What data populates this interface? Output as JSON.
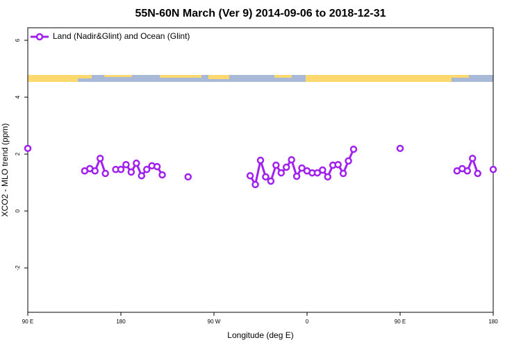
{
  "chart_data": {
    "type": "line",
    "title": "55N-60N March (Ver 9)   2014-09-06 to 2018-12-31",
    "xlabel": "Longitude (deg E)",
    "ylabel": "XCO2 - MLO trend (ppm)",
    "x": [
      90,
      100,
      145,
      150,
      155,
      160,
      165,
      170,
      175,
      180,
      185,
      190,
      195,
      200,
      205,
      210,
      215,
      220,
      230,
      245,
      260,
      305,
      310,
      315,
      320,
      325,
      330,
      335,
      340,
      345,
      350,
      355,
      360,
      365,
      370,
      375,
      380,
      385,
      390,
      395,
      400,
      405,
      430,
      450,
      480,
      505,
      510,
      515,
      520,
      525,
      535,
      540
    ],
    "series": [
      {
        "name": "Land (Nadir&Glint) and Ocean (Glint)",
        "color": "#a020f0",
        "values": [
          2.2,
          null,
          1.41,
          1.49,
          1.41,
          1.85,
          1.32,
          null,
          1.46,
          1.46,
          1.63,
          1.37,
          1.68,
          1.24,
          1.46,
          1.59,
          1.56,
          1.27,
          null,
          1.2,
          null,
          1.24,
          0.93,
          1.78,
          1.2,
          1.05,
          1.61,
          1.34,
          1.54,
          1.8,
          1.22,
          1.51,
          1.41,
          1.34,
          1.34,
          1.44,
          1.2,
          1.61,
          1.63,
          1.32,
          1.76,
          2.17,
          null,
          2.2,
          null,
          1.41,
          1.49,
          1.41,
          1.85,
          1.32,
          null,
          1.46
        ]
      }
    ],
    "xlim": [
      90,
      540
    ],
    "xticks": [
      {
        "value": 90,
        "label": "90 E"
      },
      {
        "value": 180,
        "label": "180"
      },
      {
        "value": 270,
        "label": "90 W"
      },
      {
        "value": 360,
        "label": "0"
      },
      {
        "value": 450,
        "label": "90 E"
      },
      {
        "value": 540,
        "label": "180"
      }
    ],
    "ylim": [
      -3.56,
      6.44
    ],
    "yticks": [
      -2,
      0,
      2,
      4,
      6
    ],
    "legend": "top-left"
  }
}
